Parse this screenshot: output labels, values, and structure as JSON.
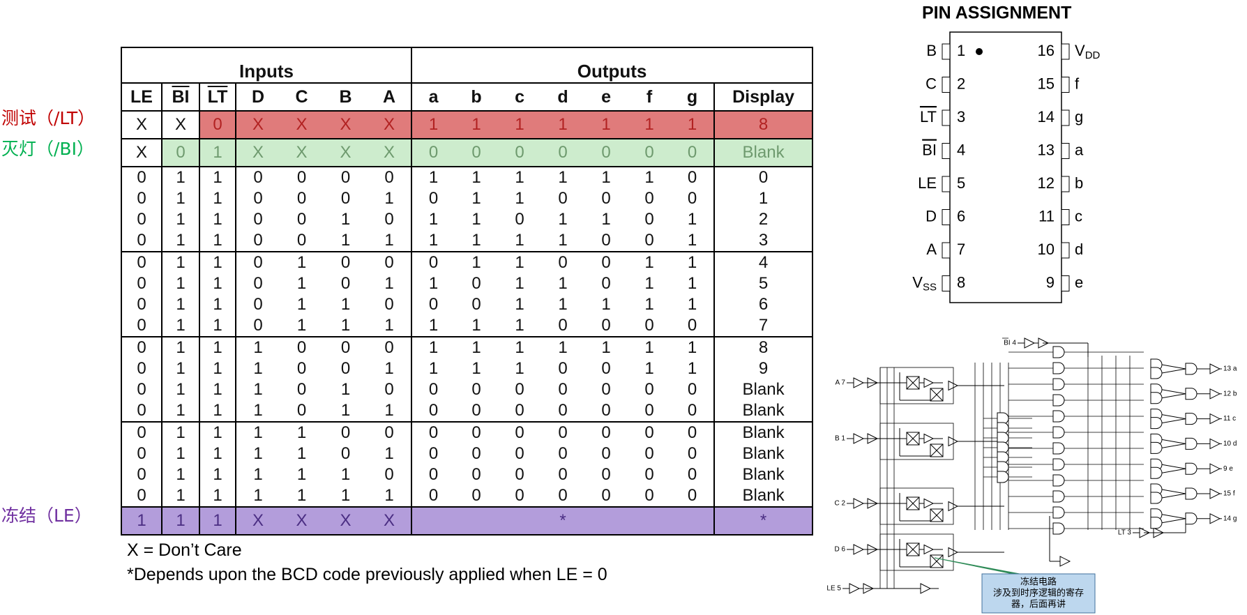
{
  "side_labels": [
    "测试（/LT）",
    "灭灯（/BI）",
    "冻结（LE）"
  ],
  "table": {
    "groups": [
      "Inputs",
      "Outputs"
    ],
    "columns": [
      "LE",
      "BI",
      "LT",
      "D",
      "C",
      "B",
      "A",
      "a",
      "b",
      "c",
      "d",
      "e",
      "f",
      "g",
      "Display"
    ],
    "overlined_columns": [
      1,
      2
    ],
    "row_groups": [
      {
        "highlight": {
          "color": "#e07b7b",
          "text_color": "#b22222",
          "from": 2
        },
        "rows": [
          [
            "X",
            "X",
            "0",
            "X",
            "X",
            "X",
            "X",
            "1",
            "1",
            "1",
            "1",
            "1",
            "1",
            "1",
            "8"
          ]
        ]
      },
      {
        "highlight": {
          "color": "#cdeccd",
          "text_color": "#6e9a6e",
          "from": 1
        },
        "rows": [
          [
            "X",
            "0",
            "1",
            "X",
            "X",
            "X",
            "X",
            "0",
            "0",
            "0",
            "0",
            "0",
            "0",
            "0",
            "Blank"
          ]
        ]
      },
      {
        "rows": [
          [
            "0",
            "1",
            "1",
            "0",
            "0",
            "0",
            "0",
            "1",
            "1",
            "1",
            "1",
            "1",
            "1",
            "0",
            "0"
          ],
          [
            "0",
            "1",
            "1",
            "0",
            "0",
            "0",
            "1",
            "0",
            "1",
            "1",
            "0",
            "0",
            "0",
            "0",
            "1"
          ],
          [
            "0",
            "1",
            "1",
            "0",
            "0",
            "1",
            "0",
            "1",
            "1",
            "0",
            "1",
            "1",
            "0",
            "1",
            "2"
          ],
          [
            "0",
            "1",
            "1",
            "0",
            "0",
            "1",
            "1",
            "1",
            "1",
            "1",
            "1",
            "0",
            "0",
            "1",
            "3"
          ]
        ]
      },
      {
        "rows": [
          [
            "0",
            "1",
            "1",
            "0",
            "1",
            "0",
            "0",
            "0",
            "1",
            "1",
            "0",
            "0",
            "1",
            "1",
            "4"
          ],
          [
            "0",
            "1",
            "1",
            "0",
            "1",
            "0",
            "1",
            "1",
            "0",
            "1",
            "1",
            "0",
            "1",
            "1",
            "5"
          ],
          [
            "0",
            "1",
            "1",
            "0",
            "1",
            "1",
            "0",
            "0",
            "0",
            "1",
            "1",
            "1",
            "1",
            "1",
            "6"
          ],
          [
            "0",
            "1",
            "1",
            "0",
            "1",
            "1",
            "1",
            "1",
            "1",
            "1",
            "0",
            "0",
            "0",
            "0",
            "7"
          ]
        ]
      },
      {
        "rows": [
          [
            "0",
            "1",
            "1",
            "1",
            "0",
            "0",
            "0",
            "1",
            "1",
            "1",
            "1",
            "1",
            "1",
            "1",
            "8"
          ],
          [
            "0",
            "1",
            "1",
            "1",
            "0",
            "0",
            "1",
            "1",
            "1",
            "1",
            "0",
            "0",
            "1",
            "1",
            "9"
          ],
          [
            "0",
            "1",
            "1",
            "1",
            "0",
            "1",
            "0",
            "0",
            "0",
            "0",
            "0",
            "0",
            "0",
            "0",
            "Blank"
          ],
          [
            "0",
            "1",
            "1",
            "1",
            "0",
            "1",
            "1",
            "0",
            "0",
            "0",
            "0",
            "0",
            "0",
            "0",
            "Blank"
          ]
        ]
      },
      {
        "rows": [
          [
            "0",
            "1",
            "1",
            "1",
            "1",
            "0",
            "0",
            "0",
            "0",
            "0",
            "0",
            "0",
            "0",
            "0",
            "Blank"
          ],
          [
            "0",
            "1",
            "1",
            "1",
            "1",
            "0",
            "1",
            "0",
            "0",
            "0",
            "0",
            "0",
            "0",
            "0",
            "Blank"
          ],
          [
            "0",
            "1",
            "1",
            "1",
            "1",
            "1",
            "0",
            "0",
            "0",
            "0",
            "0",
            "0",
            "0",
            "0",
            "Blank"
          ],
          [
            "0",
            "1",
            "1",
            "1",
            "1",
            "1",
            "1",
            "0",
            "0",
            "0",
            "0",
            "0",
            "0",
            "0",
            "Blank"
          ]
        ]
      },
      {
        "highlight": {
          "color": "#b39ddb",
          "text_color": "#4b2e83",
          "from": 0
        },
        "rows": [
          [
            "1",
            "1",
            "1",
            "X",
            "X",
            "X",
            "X",
            "*",
            "*"
          ]
        ]
      }
    ]
  },
  "notes": [
    "X = Don’t Care",
    "*Depends upon the BCD code previously applied when LE = 0"
  ],
  "pin_assignment": {
    "title": "PIN ASSIGNMENT",
    "left": [
      {
        "label": "B",
        "pin": "1"
      },
      {
        "label": "C",
        "pin": "2"
      },
      {
        "label": "LT",
        "pin": "3",
        "overline": true
      },
      {
        "label": "BI",
        "pin": "4",
        "overline": true
      },
      {
        "label": "LE",
        "pin": "5"
      },
      {
        "label": "D",
        "pin": "6"
      },
      {
        "label": "A",
        "pin": "7"
      },
      {
        "label": "V",
        "sub": "SS",
        "pin": "8"
      }
    ],
    "right": [
      {
        "label": "V",
        "sub": "DD",
        "pin": "16"
      },
      {
        "label": "f",
        "pin": "15"
      },
      {
        "label": "g",
        "pin": "14"
      },
      {
        "label": "a",
        "pin": "13"
      },
      {
        "label": "b",
        "pin": "12"
      },
      {
        "label": "c",
        "pin": "11"
      },
      {
        "label": "d",
        "pin": "10"
      },
      {
        "label": "e",
        "pin": "9"
      }
    ]
  },
  "logic_diagram": {
    "inputs": [
      {
        "label": "BI 4",
        "overline_chars": 2
      },
      {
        "label": "A 7"
      },
      {
        "label": "B 1"
      },
      {
        "label": "C 2"
      },
      {
        "label": "D 6"
      },
      {
        "label": "LE 5"
      },
      {
        "label": "LT 3"
      }
    ],
    "outputs": [
      "13 a",
      "12 b",
      "11 c",
      "10 d",
      "9 e",
      "15 f",
      "14 g"
    ],
    "callout": [
      "冻结电路",
      "涉及到时序逻辑的寄存",
      "器，后面再讲"
    ]
  }
}
